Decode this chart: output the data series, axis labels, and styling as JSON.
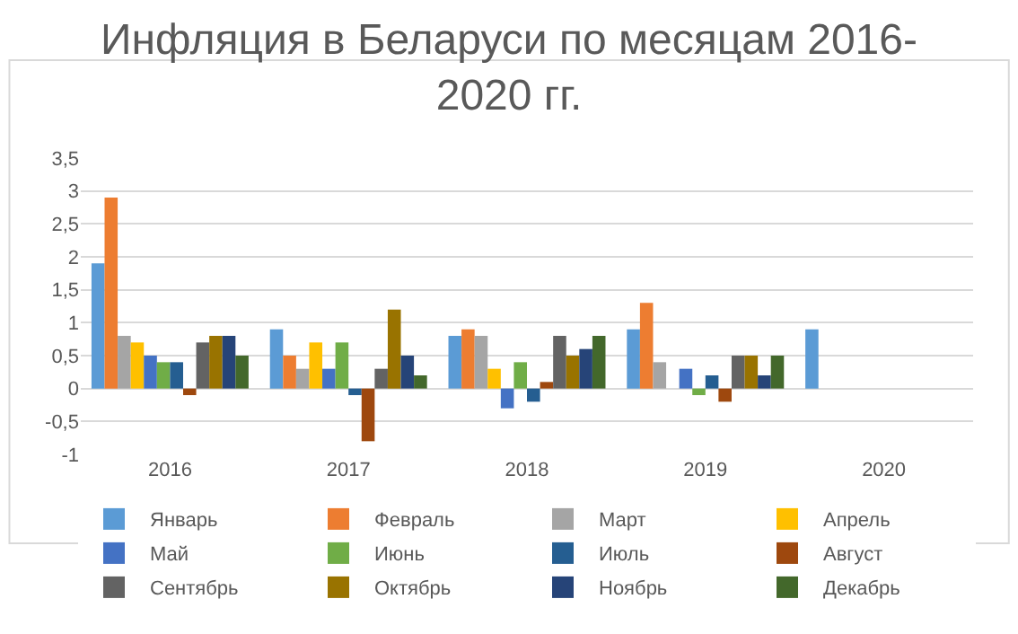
{
  "chart_data": {
    "type": "bar",
    "title": "Инфляция в Беларуси по месяцам 2016-2020 гг.",
    "categories": [
      "2016",
      "2017",
      "2018",
      "2019",
      "2020"
    ],
    "series": [
      {
        "name": "Январь",
        "color": "#5b9bd5",
        "values": [
          1.9,
          0.9,
          0.8,
          0.9,
          0.9
        ]
      },
      {
        "name": "Февраль",
        "color": "#ed7d31",
        "values": [
          2.9,
          0.5,
          0.9,
          1.3,
          null
        ]
      },
      {
        "name": "Март",
        "color": "#a5a5a5",
        "values": [
          0.8,
          0.3,
          0.8,
          0.4,
          null
        ]
      },
      {
        "name": "Апрель",
        "color": "#ffc000",
        "values": [
          0.7,
          0.7,
          0.3,
          0.0,
          null
        ]
      },
      {
        "name": "Май",
        "color": "#4472c4",
        "values": [
          0.5,
          0.3,
          -0.3,
          0.3,
          null
        ]
      },
      {
        "name": "Июнь",
        "color": "#70ad47",
        "values": [
          0.4,
          0.7,
          0.4,
          -0.1,
          null
        ]
      },
      {
        "name": "Июль",
        "color": "#255e91",
        "values": [
          0.4,
          -0.1,
          -0.2,
          0.2,
          null
        ]
      },
      {
        "name": "Август",
        "color": "#9e480e",
        "values": [
          -0.1,
          -0.8,
          0.1,
          -0.2,
          null
        ]
      },
      {
        "name": "Сентябрь",
        "color": "#636363",
        "values": [
          0.7,
          0.3,
          0.8,
          0.5,
          null
        ]
      },
      {
        "name": "Октябрь",
        "color": "#997300",
        "values": [
          0.8,
          1.2,
          0.5,
          0.5,
          null
        ]
      },
      {
        "name": "Ноябрь",
        "color": "#264478",
        "values": [
          0.8,
          0.5,
          0.6,
          0.2,
          null
        ]
      },
      {
        "name": "Декабрь",
        "color": "#43682b",
        "values": [
          0.5,
          0.2,
          0.8,
          0.5,
          null
        ]
      }
    ],
    "ylim": [
      -1,
      3.5
    ],
    "yticks": [
      -1,
      {
        "value": -0.5,
        "label": "-0,5"
      },
      0,
      {
        "value": 0.5,
        "label": "0,5"
      },
      1,
      {
        "value": 1.5,
        "label": "1,5"
      },
      2,
      {
        "value": 2.5,
        "label": "2,5"
      },
      3,
      {
        "value": 3.5,
        "label": "3,5"
      }
    ],
    "grid": true,
    "legend": "bottom"
  }
}
